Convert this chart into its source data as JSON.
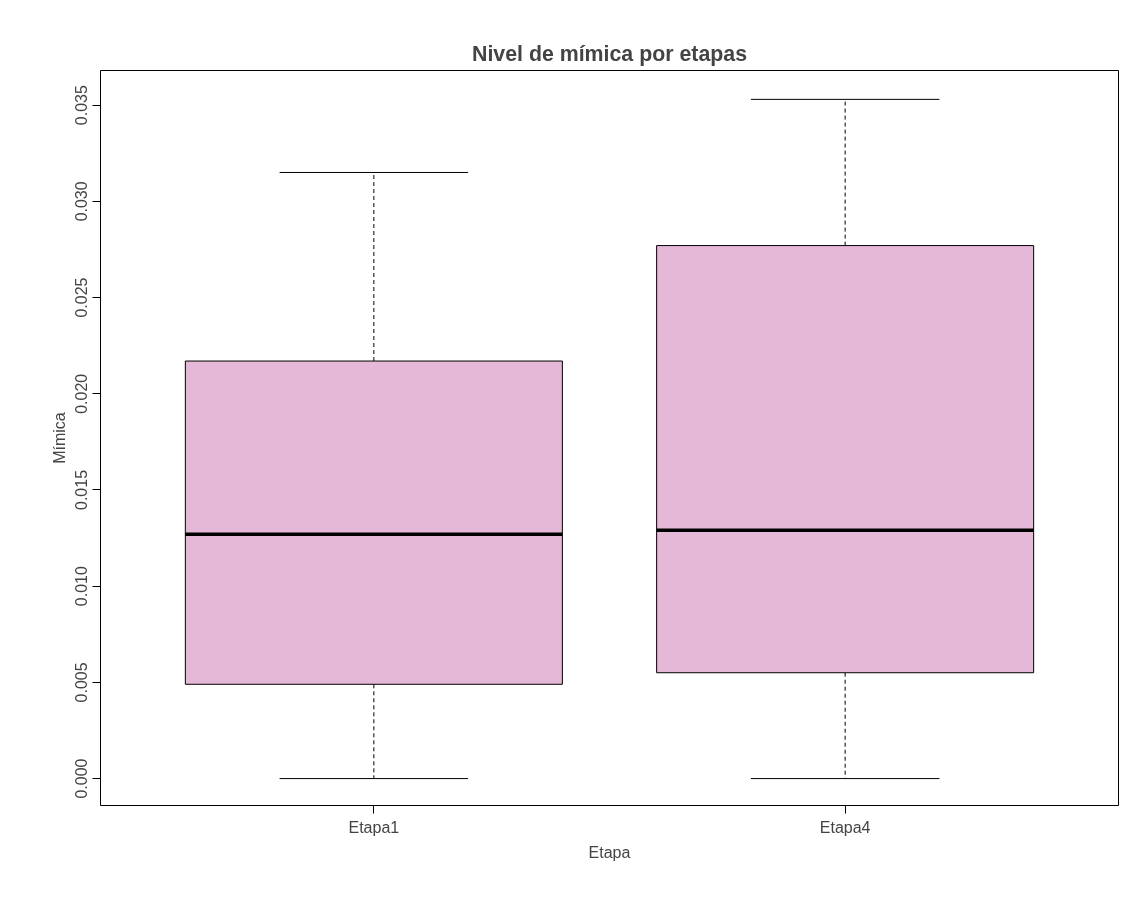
{
  "chart_data": {
    "type": "box",
    "title": "Nivel de mímica por etapas",
    "xlabel": "Etapa",
    "ylabel": "Mímica",
    "categories": [
      "Etapa1",
      "Etapa4"
    ],
    "series": [
      {
        "color": "#e6b8d7",
        "boxes": [
          {
            "low": 0.0,
            "q1": 0.0049,
            "median": 0.0127,
            "q3": 0.0217,
            "high": 0.0315
          },
          {
            "low": 0.0,
            "q1": 0.0055,
            "median": 0.0129,
            "q3": 0.0277,
            "high": 0.0353
          }
        ]
      }
    ],
    "ylim": [
      -0.0014,
      0.0368
    ],
    "yticks": [
      {
        "value": 0,
        "label": "0.000"
      },
      {
        "value": 0.005,
        "label": "0.005"
      },
      {
        "value": 0.01,
        "label": "0.010"
      },
      {
        "value": 0.015,
        "label": "0.015"
      },
      {
        "value": 0.02,
        "label": "0.020"
      },
      {
        "value": 0.025,
        "label": "0.025"
      },
      {
        "value": 0.03,
        "label": "0.030"
      },
      {
        "value": 0.035,
        "label": "0.035"
      }
    ],
    "grid": false
  }
}
